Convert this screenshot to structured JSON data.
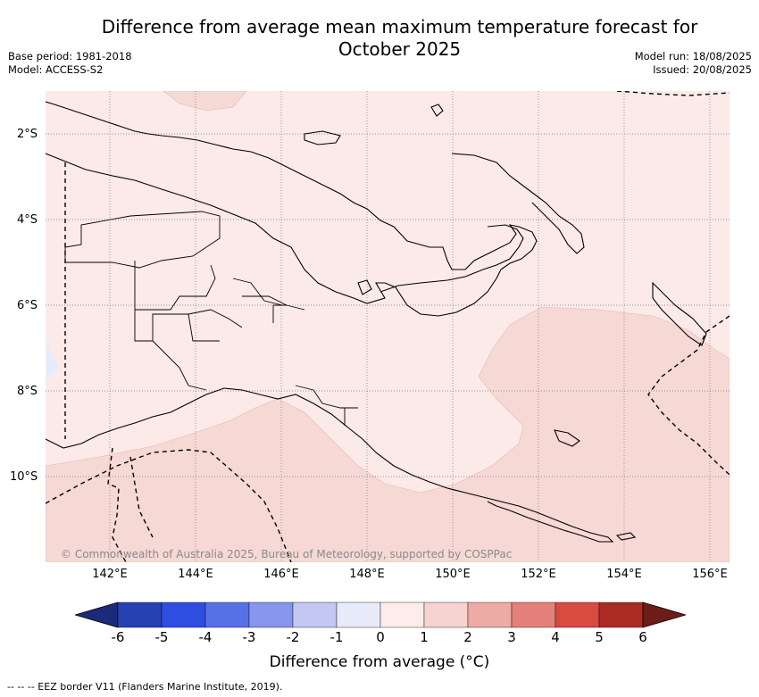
{
  "title_line1": "Difference from average mean maximum temperature forecast for",
  "title_line2": "October 2025",
  "meta_left": {
    "base_period": "Base period: 1981-2018",
    "model": "Model: ACCESS-S2"
  },
  "meta_right": {
    "model_run": "Model run: 18/08/2025",
    "issued": "Issued: 20/08/2025"
  },
  "lat_labels": [
    "2°S",
    "4°S",
    "6°S",
    "8°S",
    "10°S"
  ],
  "lon_labels": [
    "142°E",
    "144°E",
    "146°E",
    "148°E",
    "150°E",
    "152°E",
    "154°E",
    "156°E"
  ],
  "credit": "© Commonwealth of Australia 2025, Bureau of Meteorology, supported by COSPPac",
  "colorbar": {
    "ticks": [
      "-6",
      "-5",
      "-4",
      "-3",
      "-2",
      "-1",
      "0",
      "1",
      "2",
      "3",
      "4",
      "5",
      "6"
    ],
    "colors": [
      "#1b2a7a",
      "#2541b2",
      "#2d4ee0",
      "#5870e6",
      "#8796ec",
      "#c2c8f3",
      "#e8ebfa",
      "#fdecea",
      "#f6d3d0",
      "#eeaaa5",
      "#e5817b",
      "#d94a40",
      "#ac2b22",
      "#6d1d18"
    ],
    "label": "Difference from average (°C)"
  },
  "eez_note": "--  --  -- EEZ border V11 (Flanders Marine Institute, 2019).",
  "map_colors": {
    "background": "#fbeae8",
    "warmer": "#f6d8d5",
    "cooler": "#e8ecfa"
  }
}
